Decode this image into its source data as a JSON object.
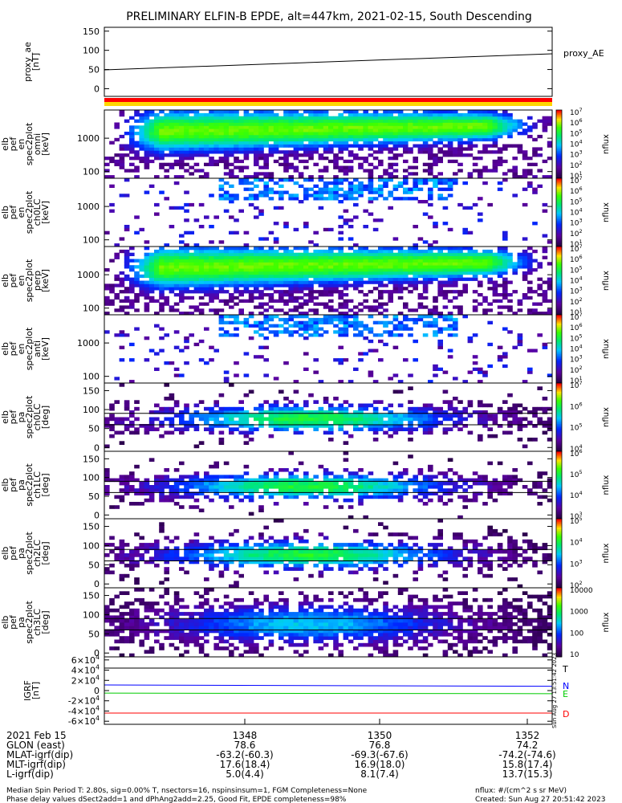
{
  "title": "PRELIMINARY ELFIN-B EPDE, alt=447km, 2021-02-15, South Descending",
  "chart_data": [
    {
      "type": "line",
      "ylabel_lines": [
        "proxy_ae",
        "[nT]"
      ],
      "yticks": [
        "150",
        "100",
        "50",
        "0"
      ],
      "ytick_values": [
        150,
        100,
        50,
        0
      ],
      "ylim": [
        -20,
        160
      ],
      "legend": "proxy_AE",
      "x": [
        0,
        1
      ],
      "series": [
        {
          "name": "proxy_AE",
          "values": [
            49,
            91
          ],
          "color": "#000000"
        }
      ]
    },
    {
      "type": "heatmap",
      "ylabel_lines": [
        "elb",
        "pef",
        "en",
        "spec2plot",
        "omni",
        "[keV]"
      ],
      "yticks": [
        "1000",
        "100"
      ],
      "ytick_values": [
        1000,
        100
      ],
      "yscale": "log",
      "ylim": [
        63,
        7000
      ],
      "colorbar_label": "nflux",
      "colorbar_ticks": [
        "10<sup>7</sup>",
        "10<sup>6</sup>",
        "10<sup>5</sup>",
        "10<sup>4</sup>",
        "10<sup>3</sup>",
        "10<sup>2</sup>",
        "10<sup>1</sup>"
      ],
      "colorbar_levels": [
        7,
        6,
        5,
        4,
        3,
        2,
        1
      ]
    },
    {
      "type": "heatmap",
      "ylabel_lines": [
        "elb",
        "pef",
        "en",
        "spec2plot",
        "ch0LC",
        "[keV]"
      ],
      "yticks": [
        "1000",
        "100"
      ],
      "ytick_values": [
        1000,
        100
      ],
      "yscale": "log",
      "ylim": [
        63,
        7000
      ],
      "colorbar_label": "nflux",
      "colorbar_ticks": [
        "10<sup>7</sup>",
        "10<sup>6</sup>",
        "10<sup>5</sup>",
        "10<sup>4</sup>",
        "10<sup>3</sup>",
        "10<sup>2</sup>",
        "10<sup>1</sup>"
      ],
      "colorbar_levels": [
        7,
        6,
        5,
        4,
        3,
        2,
        1
      ]
    },
    {
      "type": "heatmap",
      "ylabel_lines": [
        "elb",
        "pef",
        "en",
        "spec2plot",
        "perp",
        "[keV]"
      ],
      "yticks": [
        "1000",
        "100"
      ],
      "ytick_values": [
        1000,
        100
      ],
      "yscale": "log",
      "ylim": [
        63,
        7000
      ],
      "colorbar_label": "nflux",
      "colorbar_ticks": [
        "10<sup>7</sup>",
        "10<sup>6</sup>",
        "10<sup>5</sup>",
        "10<sup>4</sup>",
        "10<sup>3</sup>",
        "10<sup>2</sup>",
        "10<sup>1</sup>"
      ],
      "colorbar_levels": [
        7,
        6,
        5,
        4,
        3,
        2,
        1
      ]
    },
    {
      "type": "heatmap",
      "ylabel_lines": [
        "elb",
        "pef",
        "en",
        "spec2plot",
        "anti",
        "[keV]"
      ],
      "yticks": [
        "1000",
        "100"
      ],
      "ytick_values": [
        1000,
        100
      ],
      "yscale": "log",
      "ylim": [
        63,
        7000
      ],
      "colorbar_label": "nflux",
      "colorbar_ticks": [
        "10<sup>7</sup>",
        "10<sup>6</sup>",
        "10<sup>5</sup>",
        "10<sup>4</sup>",
        "10<sup>3</sup>",
        "10<sup>2</sup>",
        "10<sup>1</sup>"
      ],
      "colorbar_levels": [
        7,
        6,
        5,
        4,
        3,
        2,
        1
      ]
    },
    {
      "type": "heatmap",
      "ylabel_lines": [
        "elb",
        "pef",
        "pa",
        "spec2plot",
        "ch0LC",
        "[deg]"
      ],
      "yticks": [
        "150",
        "100",
        "50",
        "0"
      ],
      "ytick_values": [
        150,
        100,
        50,
        0
      ],
      "ylim": [
        -10,
        170
      ],
      "colorbar_label": "nflux",
      "colorbar_ticks": [
        "10<sup>7</sup>",
        "10<sup>6</sup>",
        "10<sup>5</sup>",
        "10<sup>4</sup>"
      ],
      "colorbar_levels": [
        7,
        6,
        5,
        4
      ]
    },
    {
      "type": "heatmap",
      "ylabel_lines": [
        "elb",
        "pef",
        "pa",
        "spec2plot",
        "ch1LC",
        "[deg]"
      ],
      "yticks": [
        "150",
        "100",
        "50",
        "0"
      ],
      "ytick_values": [
        150,
        100,
        50,
        0
      ],
      "ylim": [
        -10,
        170
      ],
      "colorbar_label": "nflux",
      "colorbar_ticks": [
        "10<sup>6</sup>",
        "10<sup>5</sup>",
        "10<sup>4</sup>",
        "10<sup>3</sup>"
      ],
      "colorbar_levels": [
        6,
        5,
        4,
        3
      ]
    },
    {
      "type": "heatmap",
      "ylabel_lines": [
        "elb",
        "pef",
        "pa",
        "spec2plot",
        "ch2LC",
        "[deg]"
      ],
      "yticks": [
        "150",
        "100",
        "50",
        "0"
      ],
      "ytick_values": [
        150,
        100,
        50,
        0
      ],
      "ylim": [
        -10,
        170
      ],
      "colorbar_label": "nflux",
      "colorbar_ticks": [
        "10<sup>5</sup>",
        "10<sup>4</sup>",
        "10<sup>3</sup>",
        "10<sup>2</sup>"
      ],
      "colorbar_levels": [
        5,
        4,
        3,
        2
      ]
    },
    {
      "type": "heatmap",
      "ylabel_lines": [
        "elb",
        "pef",
        "pa",
        "spec2plot",
        "ch3LC",
        "[deg]"
      ],
      "yticks": [
        "150",
        "100",
        "50",
        "0"
      ],
      "ytick_values": [
        150,
        100,
        50,
        0
      ],
      "ylim": [
        -10,
        170
      ],
      "colorbar_label": "nflux",
      "colorbar_ticks": [
        "10000",
        "1000",
        "100",
        "10"
      ],
      "colorbar_levels": [
        4,
        3,
        2,
        1
      ]
    },
    {
      "type": "line",
      "ylabel_lines": [
        "IGRF",
        "[nT]"
      ],
      "yticks": [
        "6×10<sup>4</sup>",
        "4×10<sup>4</sup>",
        "2×10<sup>4</sup>",
        "0",
        "-2×10<sup>4</sup>",
        "-4×10<sup>4</sup>",
        "-6×10<sup>4</sup>"
      ],
      "ytick_values": [
        60000,
        40000,
        20000,
        0,
        -20000,
        -40000,
        -60000
      ],
      "ylim": [
        -66000,
        66000
      ],
      "x": [
        0,
        1
      ],
      "series": [
        {
          "name": "T",
          "values": [
            44000,
            44000
          ],
          "color": "#000000"
        },
        {
          "name": "N",
          "values": [
            11000,
            8500
          ],
          "color": "#0000ff"
        },
        {
          "name": "E",
          "values": [
            -5000,
            -6000
          ],
          "color": "#00cc00"
        },
        {
          "name": "D",
          "values": [
            -44000,
            -44000
          ],
          "color": "#ff0000"
        }
      ]
    }
  ],
  "orbit_strip_colors": [
    "#ff0000",
    "#ffd700"
  ],
  "side_stamp": "Sun Aug 27 13:51:42 2023",
  "x_axis": {
    "row_labels": [
      "2021 Feb 15",
      "GLON (east)",
      "MLAT-igrf(dip)",
      "MLT-igrf(dip)",
      "L-igrf(dip)"
    ],
    "columns": [
      {
        "values": [
          "1348",
          "78.6",
          "-63.2(-60.3)",
          "17.6(18.4)",
          "5.0(4.4)"
        ]
      },
      {
        "values": [
          "1350",
          "76.8",
          "-69.3(-67.6)",
          "16.9(18.0)",
          "8.1(7.4)"
        ]
      },
      {
        "values": [
          "1352",
          "74.2",
          "-74.2(-74.6)",
          "15.8(17.4)",
          "13.7(15.3)"
        ]
      }
    ]
  },
  "footer": {
    "line1": "Median Spin Period T: 2.80s, sig=0.00% T, nsectors=16, nspinsinsum=1, FGM Completeness=None",
    "line2": "Phase delay values dSect2add=1 and dPhAng2add=2.25, Good Fit, EPDE completeness=98%",
    "units": "nflux: #/(cm^2 s sr MeV)",
    "created": "Created: Sun Aug 27 20:51:42 2023"
  }
}
